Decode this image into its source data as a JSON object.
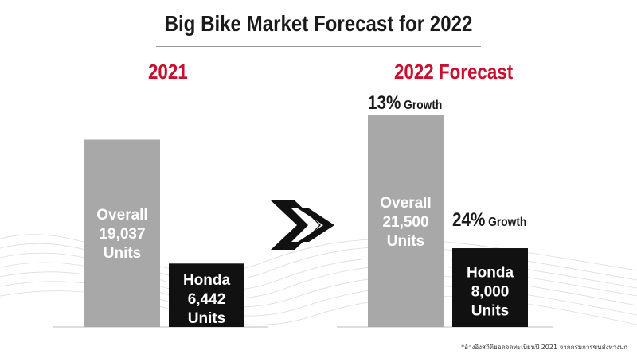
{
  "title": "Big Bike Market Forecast for 2022",
  "footnote": "*อ้างอิงสถิติยอดจดทะเบียนปี 2021 จากกรมการขนส่งทางบก",
  "colors": {
    "accent": "#c8102e",
    "overall_bar": "#a8a8a8",
    "honda_bar": "#111111",
    "text_dark": "#1a1a1a"
  },
  "chart_data": [
    {
      "type": "bar",
      "title": "2021",
      "categories": [
        "Overall",
        "Honda"
      ],
      "values": [
        19037,
        6442
      ],
      "bar_labels": [
        [
          "Overall",
          "19,037",
          "Units"
        ],
        [
          "Honda",
          "6,442",
          "Units"
        ]
      ],
      "growth_labels": [
        null,
        null
      ]
    },
    {
      "type": "bar",
      "title": "2022 Forecast",
      "categories": [
        "Overall",
        "Honda"
      ],
      "values": [
        21500,
        8000
      ],
      "bar_labels": [
        [
          "Overall",
          "21,500",
          "Units"
        ],
        [
          "Honda",
          "8,000",
          "Units"
        ]
      ],
      "growth_labels": [
        {
          "pct": "13%",
          "word": "Growth"
        },
        {
          "pct": "24%",
          "word": "Growth"
        }
      ]
    }
  ]
}
